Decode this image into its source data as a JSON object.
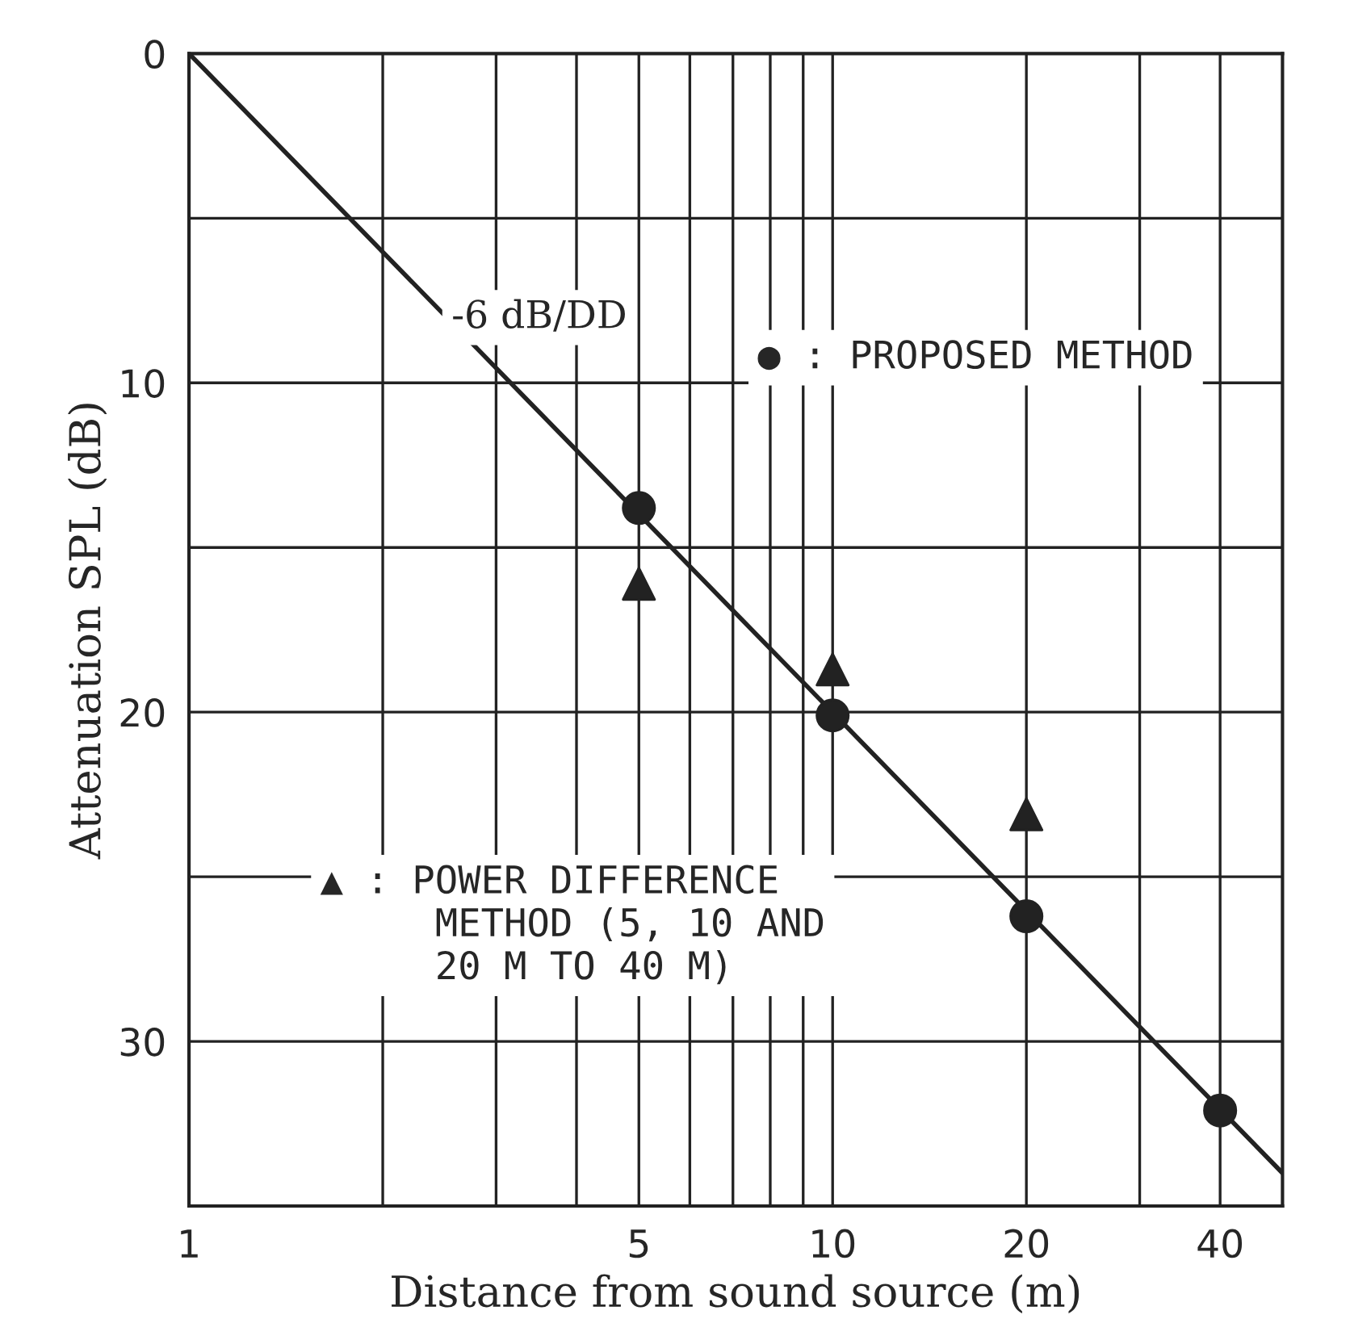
{
  "chart_data": {
    "type": "scatter",
    "xlabel": "Distance from sound source (m)",
    "ylabel": "Attenuation SPL (dB)",
    "log": "x",
    "xlim": [
      1,
      50
    ],
    "xticks": [
      1,
      {
        "value": 2,
        "label": null
      },
      {
        "value": 3,
        "label": null
      },
      {
        "value": 4,
        "label": null
      },
      5,
      {
        "value": 6,
        "label": null
      },
      {
        "value": 7,
        "label": null
      },
      {
        "value": 8,
        "label": null
      },
      {
        "value": 9,
        "label": null
      },
      10,
      20,
      {
        "value": 30,
        "label": null
      },
      40
    ],
    "ylim": [
      35,
      0
    ],
    "yticks": [
      0,
      {
        "value": 5,
        "label": null
      },
      10,
      {
        "value": 15,
        "label": null
      },
      20,
      {
        "value": 25,
        "label": null
      },
      30
    ],
    "grid": true,
    "series": [
      {
        "type": "line",
        "color": "#222222",
        "x": [
          1,
          50
        ],
        "values": [
          0,
          34.0
        ],
        "marker": "none",
        "line_style": "solid"
      },
      {
        "color": "#222222",
        "x": [
          5,
          10,
          20,
          40
        ],
        "values": [
          13.8,
          20.1,
          26.2,
          32.1
        ],
        "marker": "circle"
      },
      {
        "color": "#222222",
        "x": [
          5,
          10,
          20
        ],
        "values": [
          16.1,
          18.7,
          23.1
        ],
        "marker": "triangle"
      }
    ],
    "annotations": [
      "-6 dB/DD",
      "● : PROPOSED METHOD",
      "▲ : POWER DIFFERENCE\n     METHOD (5, 10 AND\n     20 M TO 40 M)"
    ]
  }
}
